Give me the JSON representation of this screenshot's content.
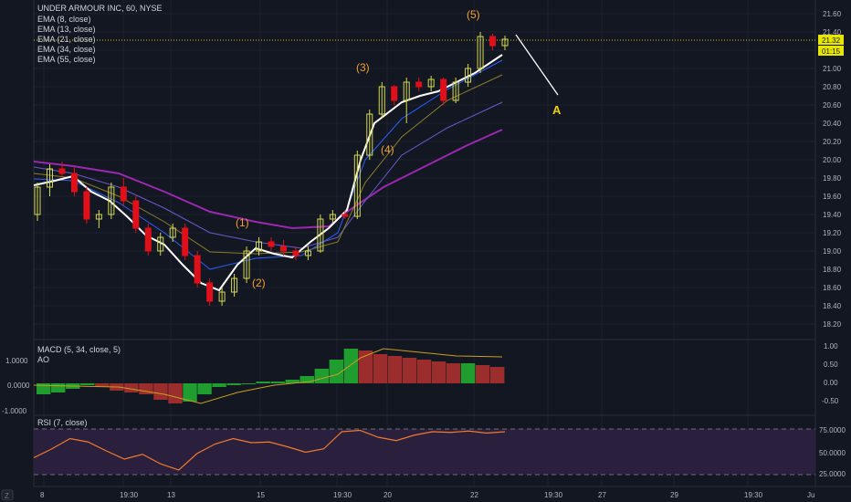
{
  "symbol_header": "UNDER ARMOUR INC, 60, NYSE",
  "legend": [
    "EMA (8, close)",
    "EMA (13, close)",
    "EMA (21, close)",
    "EMA (34, close)",
    "EMA (55, close)"
  ],
  "price_axis": [
    "21.60",
    "21.40",
    "21.20",
    "21.00",
    "20.80",
    "20.60",
    "20.40",
    "20.20",
    "20.00",
    "19.80",
    "19.60",
    "19.40",
    "19.20",
    "19.00",
    "18.80",
    "18.60",
    "18.40",
    "18.20"
  ],
  "last_price": "21.32",
  "countdown": "01:15",
  "wave_labels": [
    "(1)",
    "(2)",
    "(3)",
    "(4)",
    "(5)",
    "A"
  ],
  "macd": {
    "title": "MACD (5, 34, close, 5)",
    "subtitle": "AO",
    "left_ticks": [
      "1.0000",
      "0.0000",
      "-1.0000"
    ],
    "right_ticks": [
      "1.00",
      "0.50",
      "0.00",
      "-0.50"
    ]
  },
  "rsi": {
    "title": "RSI (7, close)",
    "right_ticks": [
      "75.0000",
      "50.0000",
      "25.0000"
    ]
  },
  "time_axis": [
    "8",
    "19:30",
    "13",
    "15",
    "19:30",
    "20",
    "22",
    "19:30",
    "27",
    "29",
    "19:30",
    "Ju"
  ],
  "corner_button": "Z",
  "colors": {
    "background": "#131722",
    "up_candle": "#d4d94a",
    "down_candle": "#e0101a",
    "ema8": "#ffffff",
    "ema13": "#2962ff",
    "ema21": "#8b7d2a",
    "ema34": "#6a5acd",
    "ema55": "#9c27b0",
    "macd_green": "#1f9d2f",
    "macd_red": "#9b2d2d",
    "rsi_line": "#f07b2b",
    "rsi_band": "#2a1f3d",
    "price_line": "#c8c800",
    "wave_label": "#f0a030"
  },
  "chart_data": {
    "type": "candlestick",
    "ylim": [
      18.2,
      21.6
    ],
    "overlays": [
      "EMA 8",
      "EMA 13",
      "EMA 21",
      "EMA 34",
      "EMA 55"
    ],
    "ohlc": [
      [
        19.4,
        19.75,
        19.33,
        19.7
      ],
      [
        19.7,
        19.95,
        19.6,
        19.9
      ],
      [
        19.9,
        19.98,
        19.8,
        19.85
      ],
      [
        19.85,
        19.92,
        19.6,
        19.65
      ],
      [
        19.65,
        19.7,
        19.3,
        19.35
      ],
      [
        19.35,
        19.45,
        19.25,
        19.4
      ],
      [
        19.4,
        19.75,
        19.35,
        19.7
      ],
      [
        19.7,
        19.8,
        19.5,
        19.55
      ],
      [
        19.55,
        19.6,
        19.2,
        19.25
      ],
      [
        19.25,
        19.3,
        18.95,
        19.0
      ],
      [
        19.0,
        19.2,
        18.95,
        19.15
      ],
      [
        19.15,
        19.3,
        19.1,
        19.25
      ],
      [
        19.25,
        19.3,
        18.9,
        18.95
      ],
      [
        18.95,
        19.0,
        18.6,
        18.65
      ],
      [
        18.65,
        18.7,
        18.4,
        18.45
      ],
      [
        18.45,
        18.6,
        18.4,
        18.55
      ],
      [
        18.55,
        18.75,
        18.5,
        18.7
      ],
      [
        18.7,
        19.05,
        18.65,
        19.0
      ],
      [
        19.0,
        19.15,
        18.95,
        19.1
      ],
      [
        19.1,
        19.15,
        19.0,
        19.05
      ],
      [
        19.05,
        19.12,
        18.95,
        19.0
      ],
      [
        19.0,
        19.05,
        18.9,
        18.95
      ],
      [
        18.95,
        19.05,
        18.9,
        19.0
      ],
      [
        19.0,
        19.4,
        18.98,
        19.35
      ],
      [
        19.35,
        19.45,
        19.3,
        19.4
      ],
      [
        19.4,
        19.45,
        19.35,
        19.38
      ],
      [
        19.38,
        20.1,
        19.35,
        20.05
      ],
      [
        20.05,
        20.55,
        20.0,
        20.5
      ],
      [
        20.5,
        20.85,
        20.45,
        20.8
      ],
      [
        20.8,
        20.82,
        20.6,
        20.65
      ],
      [
        20.65,
        20.9,
        20.4,
        20.85
      ],
      [
        20.85,
        20.9,
        20.75,
        20.8
      ],
      [
        20.8,
        20.92,
        20.75,
        20.88
      ],
      [
        20.88,
        20.9,
        20.6,
        20.65
      ],
      [
        20.65,
        20.9,
        20.62,
        20.85
      ],
      [
        20.85,
        21.05,
        20.8,
        21.0
      ],
      [
        21.0,
        21.4,
        20.95,
        21.35
      ],
      [
        21.35,
        21.38,
        21.2,
        21.25
      ],
      [
        21.25,
        21.36,
        21.2,
        21.32
      ]
    ],
    "macd_histogram": [
      -0.3,
      -0.25,
      -0.15,
      -0.05,
      -0.1,
      -0.2,
      -0.25,
      -0.3,
      -0.45,
      -0.55,
      -0.5,
      -0.3,
      -0.1,
      -0.05,
      0.0,
      0.05,
      0.05,
      0.1,
      0.2,
      0.4,
      0.65,
      0.95,
      0.9,
      0.8,
      0.75,
      0.7,
      0.65,
      0.6,
      0.55,
      0.55,
      0.5,
      0.45
    ],
    "rsi": [
      42,
      55,
      70,
      65,
      52,
      40,
      47,
      33,
      24,
      48,
      62,
      70,
      64,
      65,
      58,
      50,
      55,
      80,
      82,
      72,
      67,
      75,
      80,
      79,
      81,
      78,
      80
    ]
  }
}
